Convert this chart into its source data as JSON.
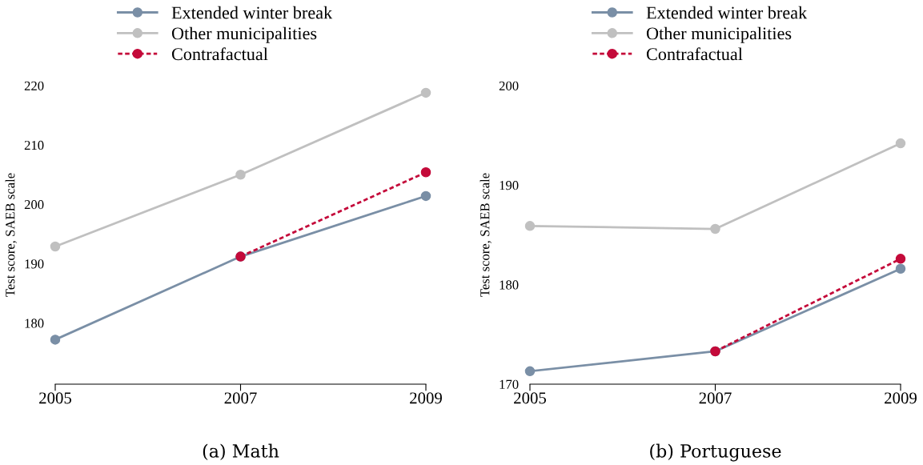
{
  "chart_data": [
    {
      "type": "line",
      "title": "(a) Math",
      "ylabel": "Test score, SAEB scale",
      "x": [
        2005,
        2007,
        2009
      ],
      "xlim": [
        2005,
        2009
      ],
      "xticks": [
        2005,
        2007,
        2009
      ],
      "ylim": [
        169.7,
        220
      ],
      "yticks": [
        180,
        190,
        200,
        210,
        220
      ],
      "legend": "top",
      "marker": "circle",
      "series": [
        {
          "name": "Extended winter break",
          "color": "#7a8fa6",
          "values": [
            177.2,
            191.2,
            201.4
          ]
        },
        {
          "name": "Other municipalities",
          "color": "#c0c0c0",
          "values": [
            192.9,
            205.0,
            218.8
          ]
        },
        {
          "name": "Contrafactual",
          "color": "#c40a3a",
          "values": [
            null,
            191.2,
            205.4
          ],
          "line_style": "dotted"
        }
      ]
    },
    {
      "type": "line",
      "title": "(b) Portuguese",
      "ylabel": "Test score, SAEB scale",
      "x": [
        2005,
        2007,
        2009
      ],
      "xlim": [
        2005,
        2009
      ],
      "xticks": [
        2005,
        2007,
        2009
      ],
      "ylim": [
        170,
        200
      ],
      "yticks": [
        170,
        180,
        190,
        200
      ],
      "legend": "top",
      "marker": "circle",
      "series": [
        {
          "name": "Extended winter break",
          "color": "#7a8fa6",
          "values": [
            171.3,
            173.3,
            181.6
          ]
        },
        {
          "name": "Other municipalities",
          "color": "#c0c0c0",
          "values": [
            185.9,
            185.6,
            194.2
          ]
        },
        {
          "name": "Contrafactual",
          "color": "#c40a3a",
          "values": [
            null,
            173.3,
            182.6
          ],
          "line_style": "dotted"
        }
      ]
    }
  ]
}
